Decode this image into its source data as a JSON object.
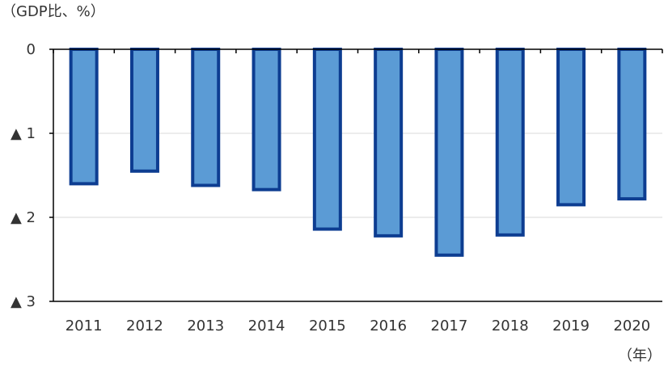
{
  "chart_data": {
    "type": "bar",
    "unit_label": "（GDP比、%）",
    "xlabel": "（年）",
    "categories": [
      "2011",
      "2012",
      "2013",
      "2014",
      "2015",
      "2016",
      "2017",
      "2018",
      "2019",
      "2020"
    ],
    "values": [
      -1.6,
      -1.45,
      -1.62,
      -1.67,
      -2.14,
      -2.22,
      -2.45,
      -2.21,
      -1.85,
      -1.78
    ],
    "ylim": [
      -3,
      0
    ],
    "yticks": [
      {
        "value": 0,
        "label": "0"
      },
      {
        "value": -1,
        "label": "▲ 1"
      },
      {
        "value": -2,
        "label": "▲ 2"
      },
      {
        "value": -3,
        "label": "▲ 3"
      }
    ],
    "grid": true,
    "legend": "none",
    "colors": {
      "bar_fill": "#5b9bd5",
      "bar_stroke": "#0d3d91",
      "gridline": "#d9d9d9",
      "axis": "#000000",
      "text": "#333333"
    }
  }
}
